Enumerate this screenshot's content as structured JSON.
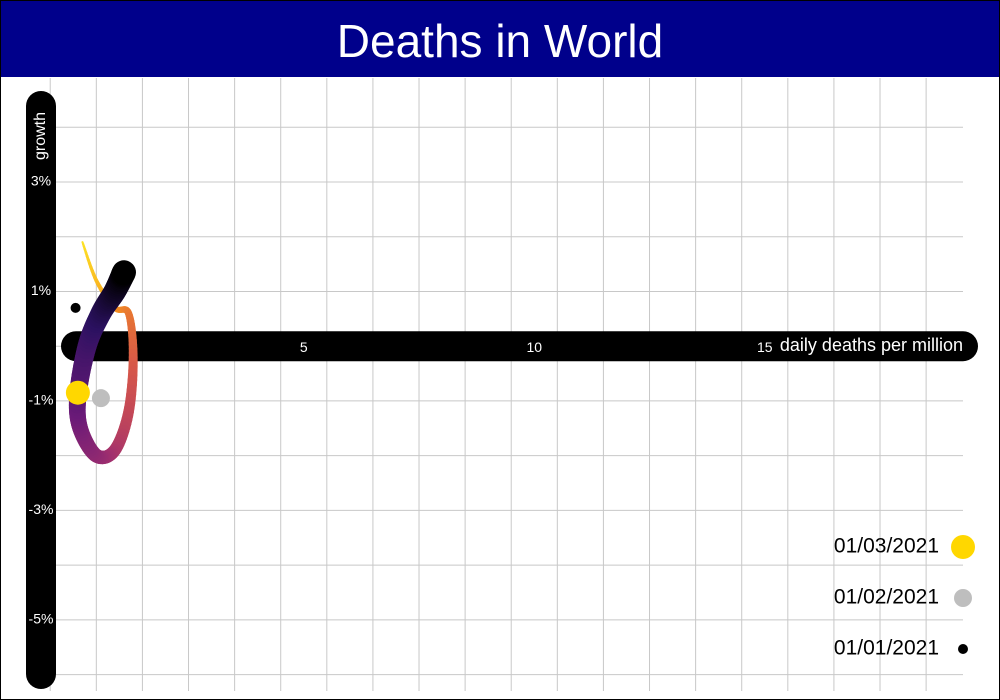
{
  "chart_data": {
    "type": "scatter",
    "title": "Deaths in World",
    "xlabel": "daily deaths per million",
    "ylabel": "growth",
    "x_ticks": [
      {
        "value": 5,
        "label": "5"
      },
      {
        "value": 10,
        "label": "10"
      },
      {
        "value": 15,
        "label": "15"
      }
    ],
    "y_ticks": [
      {
        "value": 3,
        "label": "3%"
      },
      {
        "value": 1,
        "label": "1%"
      },
      {
        "value": -1,
        "label": "-1%"
      },
      {
        "value": -3,
        "label": "-3%"
      },
      {
        "value": -5,
        "label": "-5%"
      }
    ],
    "xlim": [
      -0.7,
      19.3
    ],
    "ylim": [
      -6.3,
      4.9
    ],
    "grid": true,
    "legend_position": "bottom-right",
    "trajectory": {
      "colors": [
        "#000000",
        "#2b1160",
        "#6a1a78",
        "#a2306e",
        "#d6564a",
        "#f7921d",
        "#fde725"
      ],
      "path": [
        {
          "x": 1.1,
          "y": 1.35
        },
        {
          "x": 0.9,
          "y": 1.0
        },
        {
          "x": 0.6,
          "y": 0.6
        },
        {
          "x": 0.3,
          "y": 0.0
        },
        {
          "x": 0.1,
          "y": -0.9
        },
        {
          "x": 0.15,
          "y": -1.5
        },
        {
          "x": 0.5,
          "y": -2.0
        },
        {
          "x": 0.9,
          "y": -1.9
        },
        {
          "x": 1.2,
          "y": -1.2
        },
        {
          "x": 1.3,
          "y": -0.2
        },
        {
          "x": 1.2,
          "y": 0.6
        },
        {
          "x": 0.9,
          "y": 0.7
        },
        {
          "x": 0.5,
          "y": 1.2
        },
        {
          "x": 0.2,
          "y": 1.9
        }
      ]
    },
    "points": [
      {
        "date": "01/03/2021",
        "x": 0.1,
        "y": -0.85,
        "color": "#ffd700"
      },
      {
        "date": "01/02/2021",
        "x": 0.6,
        "y": -0.95,
        "color": "#bebebe"
      },
      {
        "date": "01/01/2021",
        "x": 0.05,
        "y": 0.7,
        "color": "#000000"
      }
    ],
    "colors": {
      "header": "#00008b",
      "axis_bar": "#000000",
      "grid": "#c8c8c8"
    }
  }
}
